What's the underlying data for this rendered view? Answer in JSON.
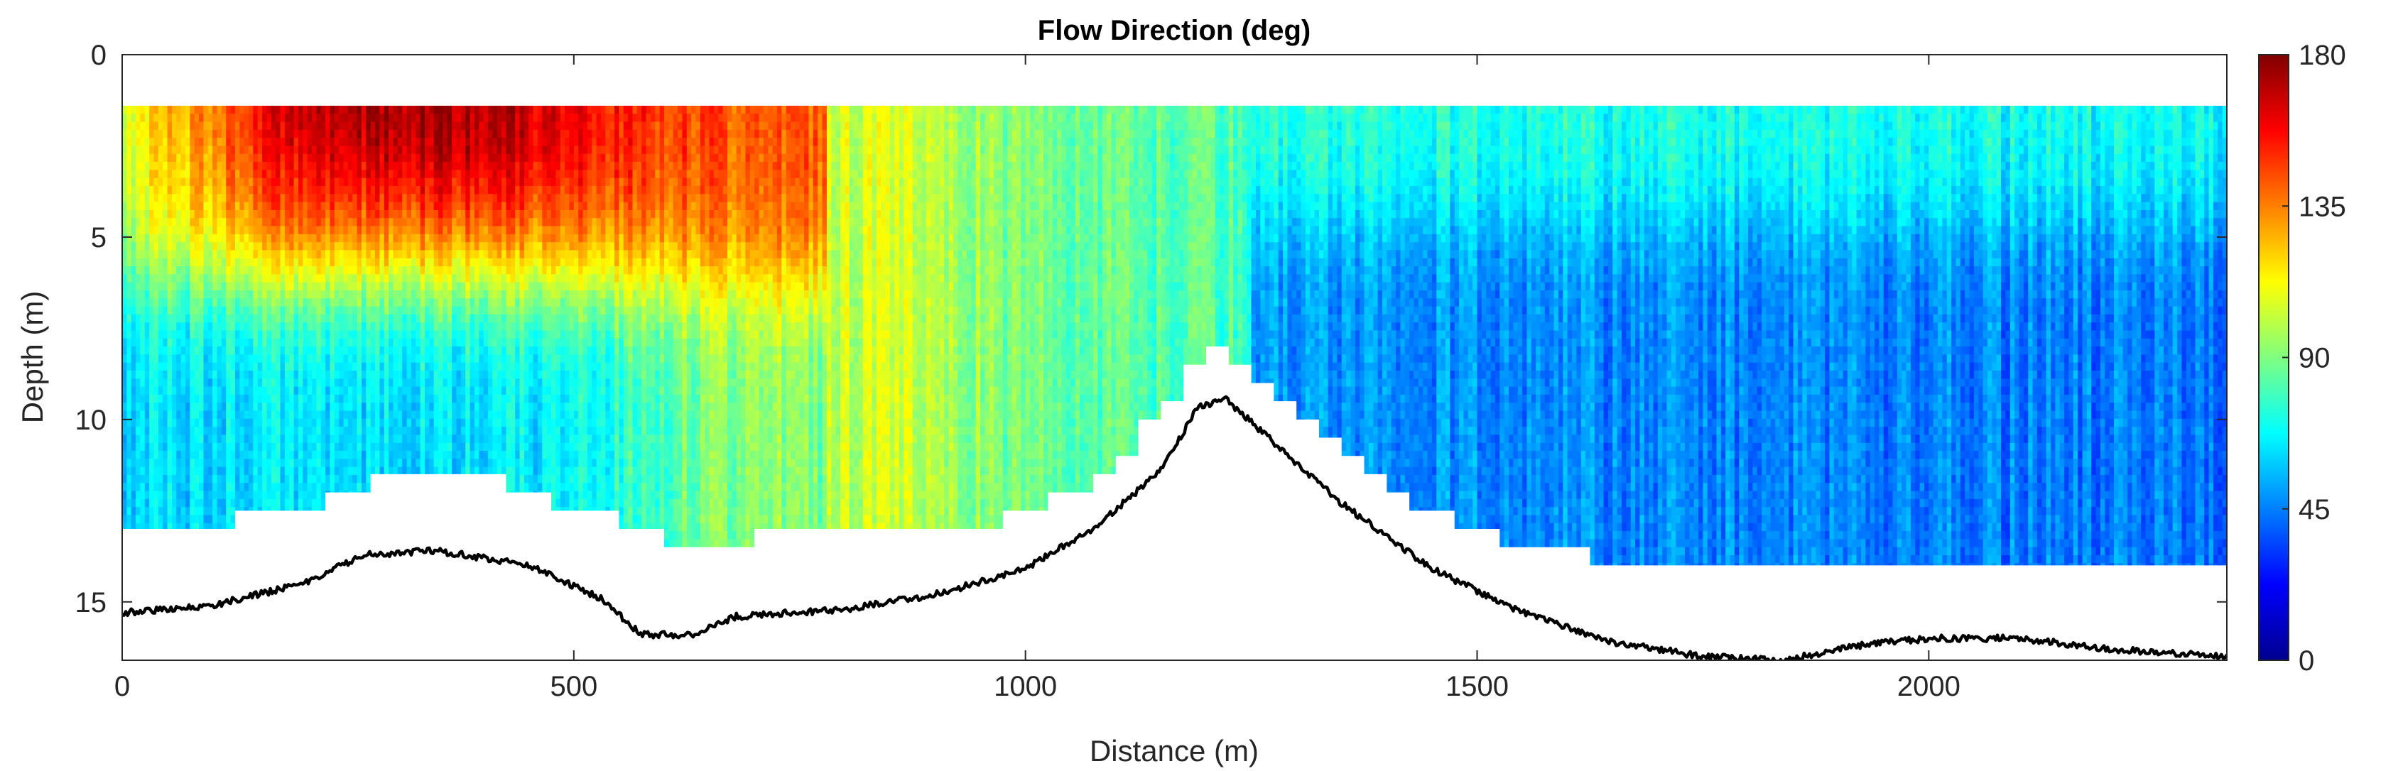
{
  "chart_data": {
    "type": "heatmap",
    "title": "Flow Direction (deg)",
    "xlabel": "Distance (m)",
    "ylabel": "Depth (m)",
    "xlim": [
      0,
      2330
    ],
    "ylim": [
      0,
      16.6
    ],
    "y_reversed": true,
    "x_ticks": [
      0,
      500,
      1000,
      1500,
      2000
    ],
    "y_ticks": [
      0,
      5,
      10,
      15
    ],
    "colorbar": {
      "colormap": "jet",
      "range": [
        0,
        180
      ],
      "ticks": [
        0,
        45,
        90,
        135,
        180
      ]
    },
    "data_top_depth": 1.4,
    "valid_data_bottom": [
      {
        "x": 0,
        "depth": 12.9
      },
      {
        "x": 100,
        "depth": 12.8
      },
      {
        "x": 200,
        "depth": 12.3
      },
      {
        "x": 300,
        "depth": 11.5
      },
      {
        "x": 400,
        "depth": 11.5
      },
      {
        "x": 500,
        "depth": 12.5
      },
      {
        "x": 600,
        "depth": 13.4
      },
      {
        "x": 700,
        "depth": 13.2
      },
      {
        "x": 800,
        "depth": 13.0
      },
      {
        "x": 900,
        "depth": 12.9
      },
      {
        "x": 1000,
        "depth": 12.6
      },
      {
        "x": 1050,
        "depth": 11.8
      },
      {
        "x": 1100,
        "depth": 10.8
      },
      {
        "x": 1150,
        "depth": 9.4
      },
      {
        "x": 1200,
        "depth": 7.8
      },
      {
        "x": 1250,
        "depth": 8.9
      },
      {
        "x": 1300,
        "depth": 10.0
      },
      {
        "x": 1350,
        "depth": 11.0
      },
      {
        "x": 1400,
        "depth": 11.9
      },
      {
        "x": 1450,
        "depth": 12.6
      },
      {
        "x": 1500,
        "depth": 13.2
      },
      {
        "x": 1600,
        "depth": 13.7
      },
      {
        "x": 1700,
        "depth": 13.9
      },
      {
        "x": 1800,
        "depth": 13.9
      },
      {
        "x": 2000,
        "depth": 13.9
      },
      {
        "x": 2330,
        "depth": 13.9
      }
    ],
    "bottom_profile": [
      {
        "x": 0,
        "depth": 15.3
      },
      {
        "x": 100,
        "depth": 15.1
      },
      {
        "x": 200,
        "depth": 14.5
      },
      {
        "x": 270,
        "depth": 13.7
      },
      {
        "x": 350,
        "depth": 13.6
      },
      {
        "x": 450,
        "depth": 14.0
      },
      {
        "x": 530,
        "depth": 14.9
      },
      {
        "x": 575,
        "depth": 15.9
      },
      {
        "x": 630,
        "depth": 15.9
      },
      {
        "x": 680,
        "depth": 15.4
      },
      {
        "x": 800,
        "depth": 15.2
      },
      {
        "x": 900,
        "depth": 14.8
      },
      {
        "x": 1000,
        "depth": 14.1
      },
      {
        "x": 1080,
        "depth": 12.9
      },
      {
        "x": 1150,
        "depth": 11.4
      },
      {
        "x": 1190,
        "depth": 9.7
      },
      {
        "x": 1220,
        "depth": 9.4
      },
      {
        "x": 1260,
        "depth": 10.3
      },
      {
        "x": 1350,
        "depth": 12.3
      },
      {
        "x": 1450,
        "depth": 14.1
      },
      {
        "x": 1550,
        "depth": 15.3
      },
      {
        "x": 1650,
        "depth": 16.1
      },
      {
        "x": 1750,
        "depth": 16.5
      },
      {
        "x": 1840,
        "depth": 16.6
      },
      {
        "x": 1920,
        "depth": 16.2
      },
      {
        "x": 2000,
        "depth": 16.0
      },
      {
        "x": 2100,
        "depth": 16.0
      },
      {
        "x": 2200,
        "depth": 16.3
      },
      {
        "x": 2330,
        "depth": 16.5
      }
    ]
  }
}
